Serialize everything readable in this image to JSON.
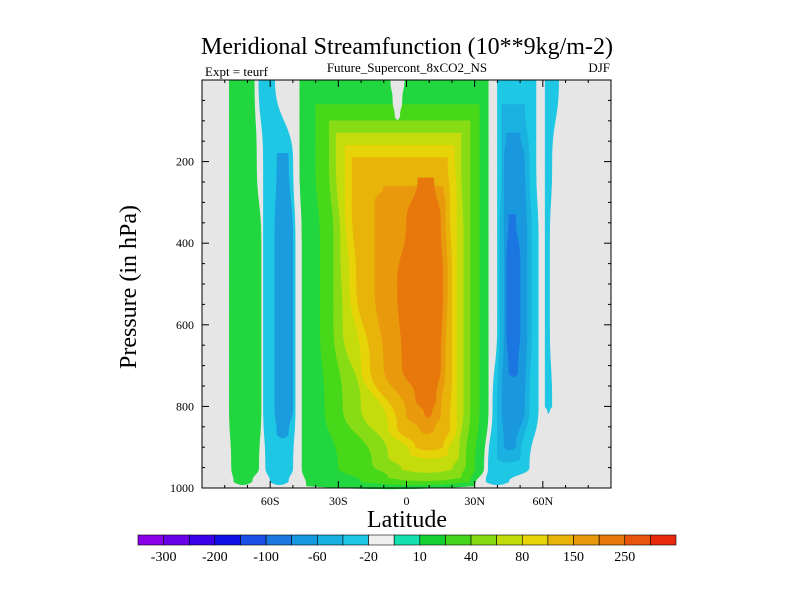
{
  "chart_data": {
    "type": "heatmap",
    "title": "Meridional Streamfunction (10**9kg/m-2)",
    "subtitle": "Future_Supercont_8xCO2_NS",
    "left_label": "Expt = teurf",
    "right_label": "DJF",
    "xlabel": "Latitude",
    "ylabel": "Pressure (in hPa)",
    "xlim": [
      -90,
      90
    ],
    "ylim": [
      0,
      1000
    ],
    "y_inverted": true,
    "x_ticks": [
      {
        "value": -60,
        "label": "60S"
      },
      {
        "value": -30,
        "label": "30S"
      },
      {
        "value": 0,
        "label": "0"
      },
      {
        "value": 30,
        "label": "30N"
      },
      {
        "value": 60,
        "label": "60N"
      }
    ],
    "y_ticks": [
      {
        "value": 200,
        "label": "200"
      },
      {
        "value": 400,
        "label": "400"
      },
      {
        "value": 600,
        "label": "600"
      },
      {
        "value": 800,
        "label": "800"
      },
      {
        "value": 1000,
        "label": "1000"
      }
    ],
    "background_color": "#e6e6e6",
    "colorbar": {
      "colors": [
        "#8a00e8",
        "#6a00e8",
        "#3a00e8",
        "#1010e6",
        "#1c4fe6",
        "#1a78e0",
        "#1598de",
        "#18b0e0",
        "#1cc8e4",
        "#f0f0f0",
        "#14e0b0",
        "#14d030",
        "#44d61a",
        "#86dc14",
        "#c0dc0c",
        "#e6d408",
        "#e8b40a",
        "#e89a0c",
        "#e8780c",
        "#e8560c",
        "#e82a0c"
      ],
      "labels": [
        {
          "boundary": 1,
          "text": "-300"
        },
        {
          "boundary": 3,
          "text": "-200"
        },
        {
          "boundary": 5,
          "text": "-100"
        },
        {
          "boundary": 7,
          "text": "-60"
        },
        {
          "boundary": 9,
          "text": "-20"
        },
        {
          "boundary": 11,
          "text": "10"
        },
        {
          "boundary": 13,
          "text": "40"
        },
        {
          "boundary": 15,
          "text": "80"
        },
        {
          "boundary": 17,
          "text": "150"
        },
        {
          "boundary": 19,
          "text": "250"
        }
      ]
    },
    "bands": [
      {
        "name": "sh-polar-cell-positive",
        "color": "#22d640",
        "levels": [
          {
            "p": 0,
            "x0": -78,
            "x1": -67
          },
          {
            "p": 200,
            "x0": -78,
            "x1": -66
          },
          {
            "p": 400,
            "x0": -78,
            "x1": -64
          },
          {
            "p": 600,
            "x0": -78,
            "x1": -64
          },
          {
            "p": 800,
            "x0": -78,
            "x1": -64
          },
          {
            "p": 950,
            "x0": -77,
            "x1": -65
          },
          {
            "p": 985,
            "x0": -76,
            "x1": -68
          }
        ]
      },
      {
        "name": "sh-outer-negative",
        "color": "#1ec8e4",
        "levels": [
          {
            "p": 0,
            "x0": -65,
            "x1": -58
          },
          {
            "p": 200,
            "x0": -63,
            "x1": -50
          },
          {
            "p": 400,
            "x0": -63,
            "x1": -49
          },
          {
            "p": 600,
            "x0": -63,
            "x1": -49
          },
          {
            "p": 800,
            "x0": -63,
            "x1": -49
          },
          {
            "p": 950,
            "x0": -62,
            "x1": -50
          },
          {
            "p": 985,
            "x0": -60,
            "x1": -52
          }
        ]
      },
      {
        "name": "sh-inner-negative",
        "color": "#1a9cde",
        "levels": [
          {
            "p": 180,
            "x0": -57,
            "x1": -52
          },
          {
            "p": 400,
            "x0": -58,
            "x1": -50
          },
          {
            "p": 600,
            "x0": -58,
            "x1": -50
          },
          {
            "p": 800,
            "x0": -58,
            "x1": -50
          },
          {
            "p": 870,
            "x0": -57,
            "x1": -52
          }
        ]
      },
      {
        "name": "hadley-positive-outer",
        "color": "#22d640",
        "levels": [
          {
            "p": 0,
            "x0": -47,
            "x1": 36
          },
          {
            "p": 200,
            "x0": -47,
            "x1": 36
          },
          {
            "p": 400,
            "x0": -46,
            "x1": 36
          },
          {
            "p": 600,
            "x0": -46,
            "x1": 36
          },
          {
            "p": 800,
            "x0": -46,
            "x1": 36
          },
          {
            "p": 950,
            "x0": -46,
            "x1": 34
          },
          {
            "p": 995,
            "x0": -44,
            "x1": 30
          }
        ]
      },
      {
        "name": "hadley-positive-2",
        "color": "#48d81a",
        "levels": [
          {
            "p": 60,
            "x0": -40,
            "x1": 32
          },
          {
            "p": 200,
            "x0": -40,
            "x1": 32
          },
          {
            "p": 400,
            "x0": -38,
            "x1": 32
          },
          {
            "p": 600,
            "x0": -38,
            "x1": 32
          },
          {
            "p": 800,
            "x0": -36,
            "x1": 32
          },
          {
            "p": 950,
            "x0": -30,
            "x1": 30
          },
          {
            "p": 985,
            "x0": -20,
            "x1": 28
          }
        ]
      },
      {
        "name": "hadley-positive-3",
        "color": "#88dc16",
        "levels": [
          {
            "p": 100,
            "x0": -34,
            "x1": 28
          },
          {
            "p": 200,
            "x0": -34,
            "x1": 28
          },
          {
            "p": 400,
            "x0": -32,
            "x1": 28
          },
          {
            "p": 600,
            "x0": -32,
            "x1": 28
          },
          {
            "p": 800,
            "x0": -28,
            "x1": 28
          },
          {
            "p": 940,
            "x0": -15,
            "x1": 26
          },
          {
            "p": 975,
            "x0": -8,
            "x1": 24
          }
        ]
      },
      {
        "name": "hadley-positive-4",
        "color": "#c4dc0c",
        "levels": [
          {
            "p": 130,
            "x0": -31,
            "x1": 24
          },
          {
            "p": 200,
            "x0": -31,
            "x1": 24
          },
          {
            "p": 400,
            "x0": -29,
            "x1": 25
          },
          {
            "p": 600,
            "x0": -28,
            "x1": 25
          },
          {
            "p": 800,
            "x0": -20,
            "x1": 25
          },
          {
            "p": 920,
            "x0": -8,
            "x1": 23
          },
          {
            "p": 955,
            "x0": -2,
            "x1": 20
          }
        ]
      },
      {
        "name": "hadley-positive-5",
        "color": "#e6d408",
        "levels": [
          {
            "p": 160,
            "x0": -27,
            "x1": 21
          },
          {
            "p": 300,
            "x0": -27,
            "x1": 22
          },
          {
            "p": 500,
            "x0": -25,
            "x1": 22
          },
          {
            "p": 700,
            "x0": -20,
            "x1": 22
          },
          {
            "p": 850,
            "x0": -8,
            "x1": 22
          },
          {
            "p": 920,
            "x0": 2,
            "x1": 18
          }
        ]
      },
      {
        "name": "hadley-positive-6",
        "color": "#e8b40a",
        "levels": [
          {
            "p": 190,
            "x0": -24,
            "x1": 18
          },
          {
            "p": 300,
            "x0": -24,
            "x1": 19
          },
          {
            "p": 500,
            "x0": -22,
            "x1": 20
          },
          {
            "p": 700,
            "x0": -16,
            "x1": 20
          },
          {
            "p": 850,
            "x0": -4,
            "x1": 19
          },
          {
            "p": 900,
            "x0": 4,
            "x1": 16
          }
        ]
      },
      {
        "name": "hadley-positive-7",
        "color": "#e89a0c",
        "levels": [
          {
            "p": 260,
            "x0": -10,
            "x1": 16
          },
          {
            "p": 300,
            "x0": -14,
            "x1": 17
          },
          {
            "p": 500,
            "x0": -14,
            "x1": 18
          },
          {
            "p": 700,
            "x0": -10,
            "x1": 17
          },
          {
            "p": 820,
            "x0": 0,
            "x1": 15
          },
          {
            "p": 860,
            "x0": 6,
            "x1": 12
          }
        ]
      },
      {
        "name": "hadley-core",
        "color": "#e8780c",
        "levels": [
          {
            "p": 240,
            "x0": 5,
            "x1": 12
          },
          {
            "p": 350,
            "x0": 0,
            "x1": 15
          },
          {
            "p": 500,
            "x0": -4,
            "x1": 16
          },
          {
            "p": 700,
            "x0": -2,
            "x1": 15
          },
          {
            "p": 780,
            "x0": 4,
            "x1": 13
          },
          {
            "p": 820,
            "x0": 8,
            "x1": 11
          }
        ]
      },
      {
        "name": "nh-outer-negative",
        "color": "#1ec8e4",
        "levels": [
          {
            "p": 0,
            "x0": 40,
            "x1": 57
          },
          {
            "p": 200,
            "x0": 40,
            "x1": 57
          },
          {
            "p": 400,
            "x0": 40,
            "x1": 58
          },
          {
            "p": 600,
            "x0": 40,
            "x1": 58
          },
          {
            "p": 800,
            "x0": 38,
            "x1": 58
          },
          {
            "p": 950,
            "x0": 36,
            "x1": 54
          },
          {
            "p": 985,
            "x0": 35,
            "x1": 45
          }
        ]
      },
      {
        "name": "nh-negative-2",
        "color": "#1ab0e0",
        "levels": [
          {
            "p": 60,
            "x0": 42,
            "x1": 52
          },
          {
            "p": 200,
            "x0": 42,
            "x1": 54
          },
          {
            "p": 400,
            "x0": 41,
            "x1": 55
          },
          {
            "p": 600,
            "x0": 41,
            "x1": 55
          },
          {
            "p": 800,
            "x0": 40,
            "x1": 54
          },
          {
            "p": 930,
            "x0": 40,
            "x1": 50
          }
        ]
      },
      {
        "name": "nh-negative-3",
        "color": "#1a98de",
        "levels": [
          {
            "p": 130,
            "x0": 44,
            "x1": 50
          },
          {
            "p": 200,
            "x0": 43,
            "x1": 52
          },
          {
            "p": 400,
            "x0": 43,
            "x1": 53
          },
          {
            "p": 600,
            "x0": 43,
            "x1": 53
          },
          {
            "p": 800,
            "x0": 42,
            "x1": 52
          },
          {
            "p": 900,
            "x0": 43,
            "x1": 48
          }
        ]
      },
      {
        "name": "nh-negative-core",
        "color": "#1c76e2",
        "levels": [
          {
            "p": 330,
            "x0": 45,
            "x1": 48
          },
          {
            "p": 450,
            "x0": 44,
            "x1": 50
          },
          {
            "p": 600,
            "x0": 44,
            "x1": 50
          },
          {
            "p": 720,
            "x0": 45,
            "x1": 49
          }
        ]
      },
      {
        "name": "nh-polar-negative",
        "color": "#1ec8e4",
        "levels": [
          {
            "p": 0,
            "x0": 61,
            "x1": 67
          },
          {
            "p": 200,
            "x0": 61,
            "x1": 64
          },
          {
            "p": 400,
            "x0": 61,
            "x1": 63
          },
          {
            "p": 600,
            "x0": 61,
            "x1": 63
          },
          {
            "p": 800,
            "x0": 61,
            "x1": 64
          },
          {
            "p": 810,
            "x0": 62,
            "x1": 63
          }
        ]
      },
      {
        "name": "top-notch-gap",
        "color": "#e6e6e6",
        "levels": [
          {
            "p": 0,
            "x0": -7,
            "x1": -1
          },
          {
            "p": 50,
            "x0": -6,
            "x1": -2
          },
          {
            "p": 90,
            "x0": -5,
            "x1": -3
          }
        ]
      }
    ]
  }
}
